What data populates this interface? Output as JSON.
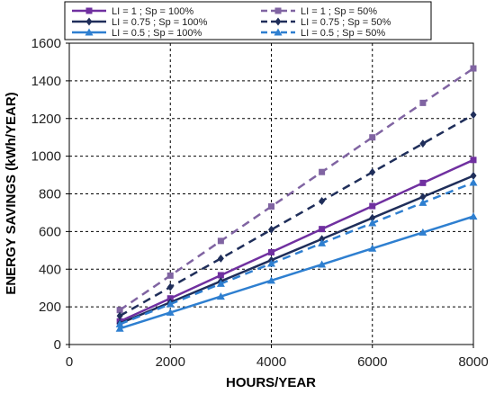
{
  "chart_data": {
    "type": "line",
    "title": "",
    "xlabel": "HOURS/YEAR",
    "ylabel": "ENERGY SAVINGS (kWh/YEAR)",
    "xlim": [
      0,
      8000
    ],
    "ylim": [
      0,
      1600
    ],
    "xticks": [
      0,
      2000,
      4000,
      6000,
      8000
    ],
    "yticks": [
      0,
      200,
      400,
      600,
      800,
      1000,
      1200,
      1400,
      1600
    ],
    "grid": "dashed",
    "legend_position": "top",
    "x": [
      1000,
      2000,
      3000,
      4000,
      5000,
      6000,
      7000,
      8000
    ],
    "series": [
      {
        "name": "LI = 1 ; Sp = 100%",
        "color": "#7030a0",
        "dashed": false,
        "marker": "square",
        "values": [
          123,
          245,
          368,
          490,
          613,
          735,
          858,
          980
        ]
      },
      {
        "name": "LI = 1 ; Sp = 50%",
        "color": "#8064a2",
        "dashed": true,
        "marker": "square",
        "values": [
          183,
          366,
          550,
          733,
          916,
          1100,
          1283,
          1466
        ]
      },
      {
        "name": "LI = 0.75 ; Sp = 100%",
        "color": "#1f2e5a",
        "dashed": false,
        "marker": "diamond",
        "values": [
          112,
          224,
          336,
          448,
          560,
          672,
          784,
          896
        ]
      },
      {
        "name": "LI = 0.75 ; Sp = 50%",
        "color": "#1f2e5a",
        "dashed": true,
        "marker": "diamond",
        "values": [
          152,
          305,
          457,
          610,
          762,
          915,
          1067,
          1220
        ]
      },
      {
        "name": "LI = 0.5 ; Sp = 100%",
        "color": "#2e7fd0",
        "dashed": false,
        "marker": "triangle",
        "values": [
          85,
          170,
          255,
          340,
          425,
          510,
          595,
          680
        ]
      },
      {
        "name": "LI = 0.5 ; Sp = 50%",
        "color": "#2e7fd0",
        "dashed": true,
        "marker": "triangle",
        "values": [
          108,
          215,
          323,
          430,
          538,
          645,
          753,
          860
        ]
      }
    ]
  }
}
